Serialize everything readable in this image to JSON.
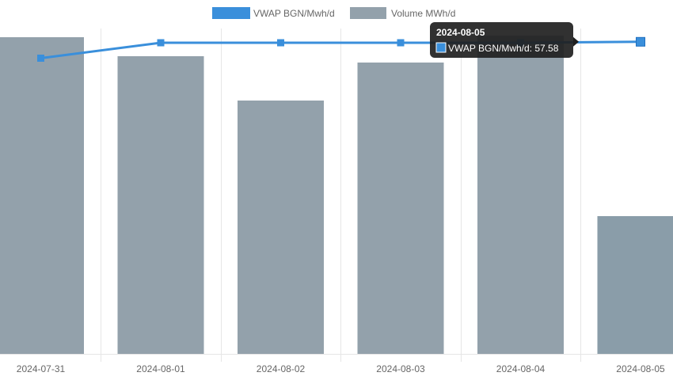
{
  "chart_data": {
    "type": "bar",
    "categories": [
      "2024-07-31",
      "2024-08-01",
      "2024-08-02",
      "2024-08-03",
      "2024-08-04",
      "2024-08-05"
    ],
    "category_labels": [
      "2024-07-31",
      "2024-08-01",
      "2024-08-02",
      "2024-08-03",
      "2024-08-04",
      "2024-08-05"
    ],
    "series": [
      {
        "name": "VWAP BGN/Mwh/d",
        "type": "line",
        "color": "#3a8fdb",
        "values": [
          56.2,
          57.5,
          57.5,
          57.5,
          57.5,
          57.58
        ]
      },
      {
        "name": "Volume MWh/d",
        "type": "bar",
        "color": "#93a1ab",
        "values": [
          1000,
          940,
          800,
          920,
          1005,
          435
        ]
      }
    ],
    "legend_position": "top",
    "grid": true,
    "tooltip": {
      "title": "2024-08-05",
      "series_label": "VWAP BGN/Mwh/d",
      "value_text": "57.58",
      "body": "VWAP BGN/Mwh/d: 57.58"
    }
  }
}
